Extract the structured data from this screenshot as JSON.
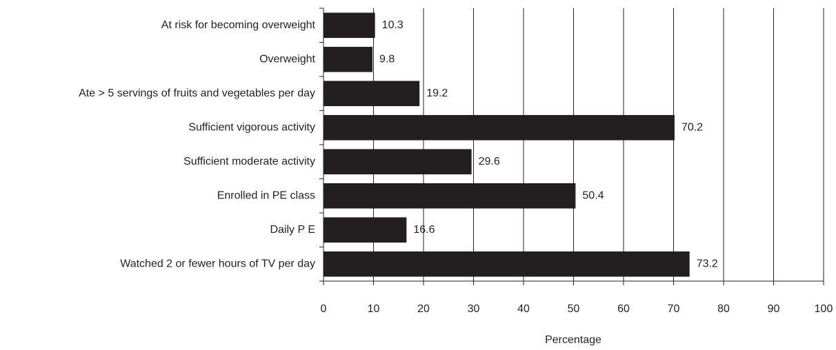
{
  "chart_data": {
    "type": "barh",
    "categories": [
      "At risk for becoming overweight",
      "Overweight",
      "Ate > 5 servings of fruits and vegetables per day",
      "Sufficient vigorous activity",
      "Sufficient moderate activity",
      "Enrolled in PE class",
      "Daily P E",
      "Watched 2 or fewer hours of TV per day"
    ],
    "values": [
      10.3,
      9.8,
      19.2,
      70.2,
      29.6,
      50.4,
      16.6,
      73.2
    ],
    "color": "#231f20",
    "xlabel": "Percentage",
    "xlim": [
      0,
      100
    ],
    "xticks": [
      0,
      10,
      20,
      30,
      40,
      50,
      60,
      70,
      80,
      90,
      100
    ],
    "grid": true
  }
}
